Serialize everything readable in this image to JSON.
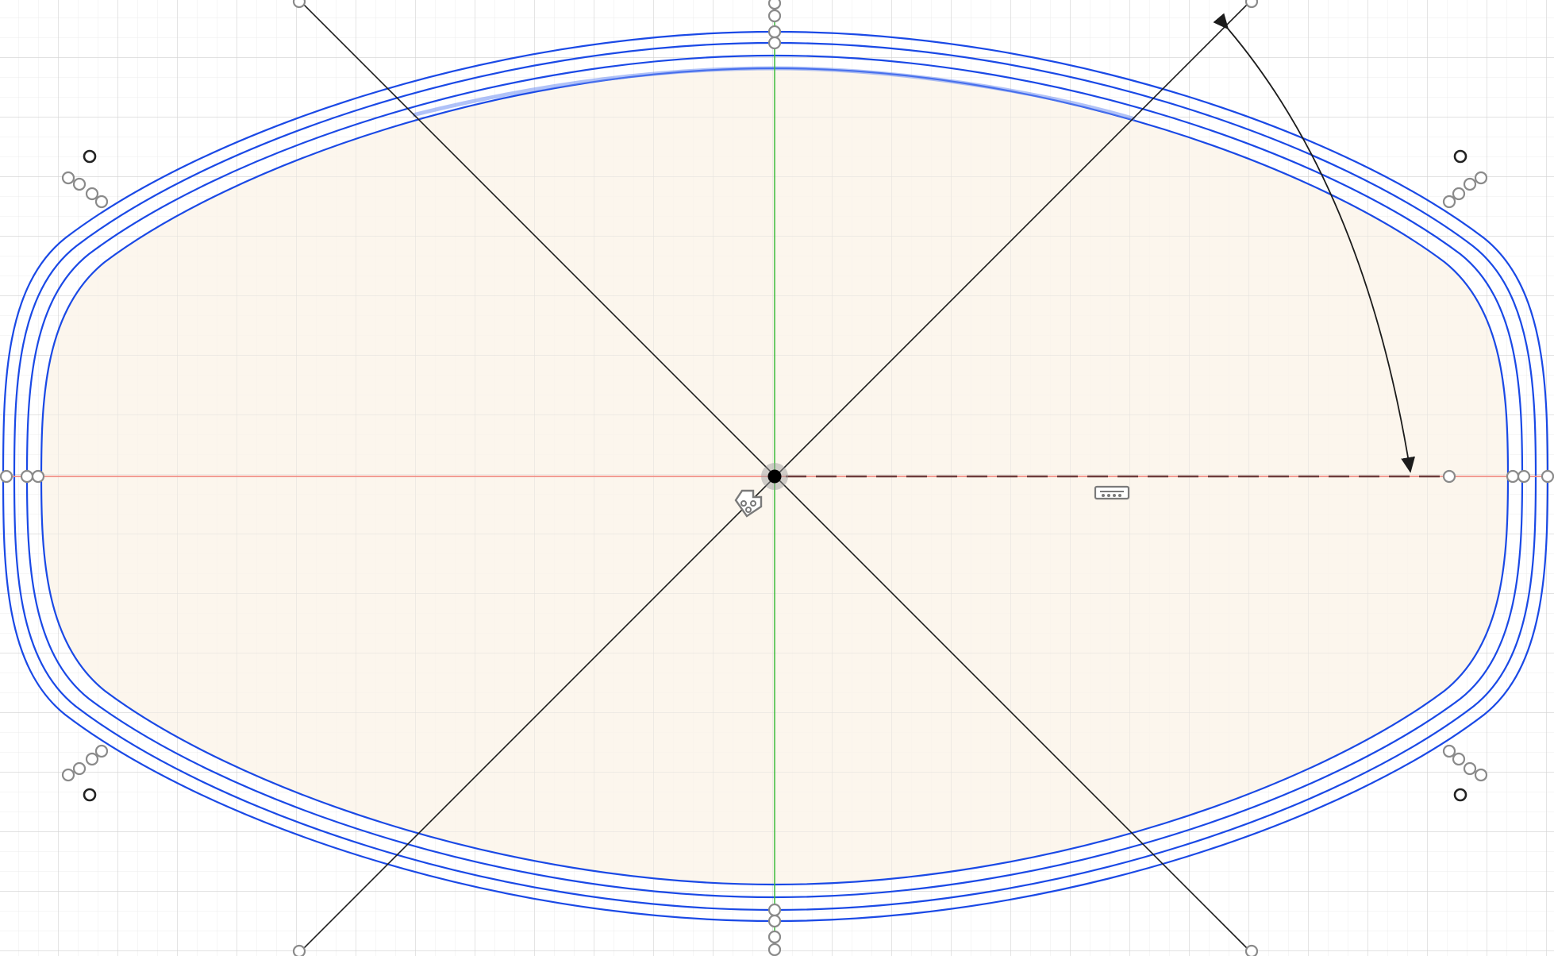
{
  "app": {
    "view": "sketch-canvas"
  },
  "colors": {
    "background": "#ffffff",
    "profile_fill": "#fcf5ea",
    "curve_stroke": "#1a49e6",
    "x_axis": "#f08f86",
    "y_axis": "#3cbc3c",
    "construction_line": "#1c1c1c",
    "dashed_reference": "#6e3c3c",
    "origin_point": "#000000",
    "point_stroke": "#8a8a8a"
  },
  "icons": {
    "origin_glyph": "sketch-origin-glyph-icon",
    "dimension_glyph": "horizontal-dimension-glyph-icon",
    "angle_arrow": "angle-dimension-arrow-icon"
  },
  "sketch": {
    "profile_count": 3,
    "construction_lines": 2,
    "grid_visible": true
  }
}
